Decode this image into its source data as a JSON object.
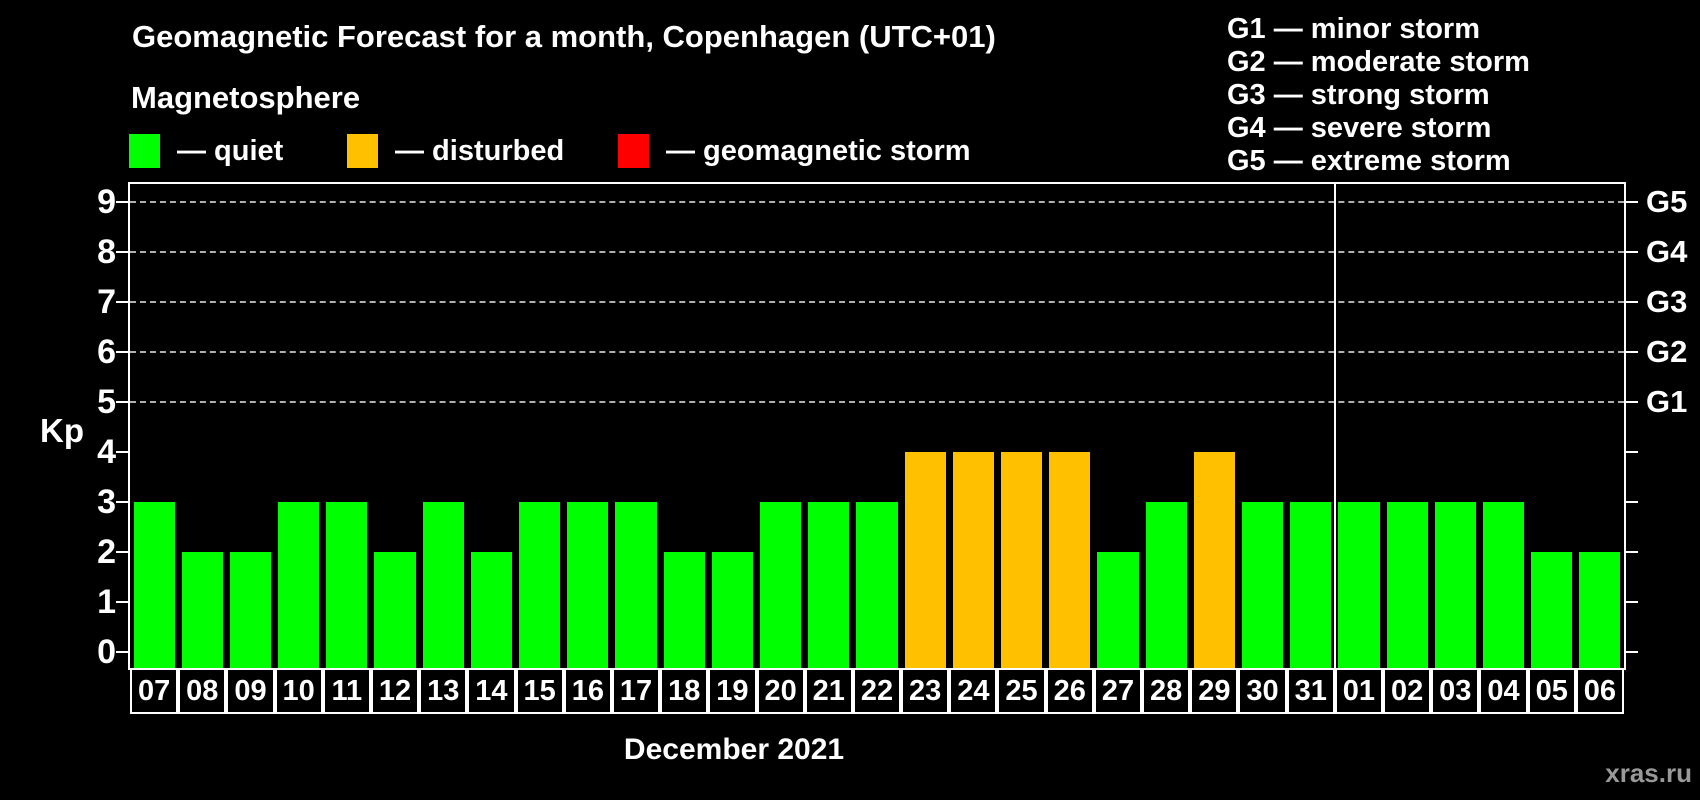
{
  "header": {
    "title": "Geomagnetic Forecast for a month, Copenhagen (UTC+01)",
    "subtitle": "Magnetosphere"
  },
  "legend": {
    "items": [
      {
        "key": "quiet",
        "label": "— quiet",
        "color": "#00ff00"
      },
      {
        "key": "disturbed",
        "label": "— disturbed",
        "color": "#ffc000"
      },
      {
        "key": "storm",
        "label": "— geomagnetic storm",
        "color": "#ff0000"
      }
    ]
  },
  "g_legend": [
    "G1 — minor storm",
    "G2 — moderate storm",
    "G3 — strong storm",
    "G4 — severe storm",
    "G5 — extreme storm"
  ],
  "watermark": "xras.ru",
  "chart_data": {
    "type": "bar",
    "title": "Geomagnetic Forecast for a month, Copenhagen (UTC+01)",
    "ylabel": "Kp",
    "xlabel": "December 2021",
    "ylim": [
      0,
      9
    ],
    "y_ticks": [
      0,
      1,
      2,
      3,
      4,
      5,
      6,
      7,
      8,
      9
    ],
    "gridlines_at": [
      5,
      6,
      7,
      8,
      9
    ],
    "grid": "dashed-horizontal",
    "legend_position": "top-left",
    "right_axis_labels": [
      {
        "label": "G1",
        "kp": 5
      },
      {
        "label": "G2",
        "kp": 6
      },
      {
        "label": "G3",
        "kp": 7
      },
      {
        "label": "G4",
        "kp": 8
      },
      {
        "label": "G5",
        "kp": 9
      }
    ],
    "categories": [
      "07",
      "08",
      "09",
      "10",
      "11",
      "12",
      "13",
      "14",
      "15",
      "16",
      "17",
      "18",
      "19",
      "20",
      "21",
      "22",
      "23",
      "24",
      "25",
      "26",
      "27",
      "28",
      "29",
      "30",
      "31",
      "01",
      "02",
      "03",
      "04",
      "05",
      "06"
    ],
    "values": [
      3,
      2,
      2,
      3,
      3,
      2,
      3,
      2,
      3,
      3,
      3,
      2,
      2,
      3,
      3,
      3,
      4,
      4,
      4,
      4,
      2,
      3,
      4,
      3,
      3,
      3,
      3,
      3,
      3,
      2,
      2
    ],
    "statuses": [
      "quiet",
      "quiet",
      "quiet",
      "quiet",
      "quiet",
      "quiet",
      "quiet",
      "quiet",
      "quiet",
      "quiet",
      "quiet",
      "quiet",
      "quiet",
      "quiet",
      "quiet",
      "quiet",
      "disturbed",
      "disturbed",
      "disturbed",
      "disturbed",
      "quiet",
      "quiet",
      "disturbed",
      "quiet",
      "quiet",
      "quiet",
      "quiet",
      "quiet",
      "quiet",
      "quiet",
      "quiet"
    ],
    "status_colors": {
      "quiet": "#00ff00",
      "disturbed": "#ffc000",
      "storm": "#ff0000"
    },
    "month_separator_after_index": 24
  }
}
